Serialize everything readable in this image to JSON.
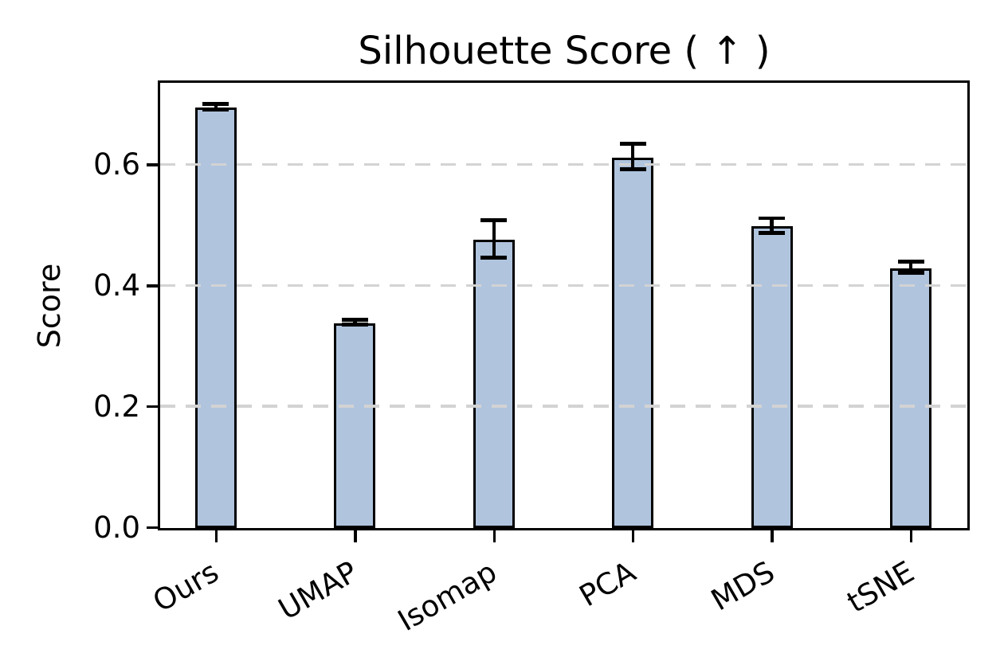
{
  "title": "Silhouette Score ( ↑ )",
  "chart_data": {
    "type": "bar",
    "title": "Silhouette Score ( ↑ )",
    "xlabel": "",
    "ylabel": "Score",
    "categories": [
      "Ours",
      "UMAP",
      "Isomap",
      "PCA",
      "MDS",
      "tSNE"
    ],
    "values": [
      0.695,
      0.339,
      0.477,
      0.613,
      0.499,
      0.43
    ],
    "errors": [
      0.005,
      0.004,
      0.031,
      0.021,
      0.012,
      0.009
    ],
    "series": [
      {
        "name": "Silhouette Score",
        "values": [
          0.695,
          0.339,
          0.477,
          0.613,
          0.499,
          0.43
        ],
        "errors": [
          0.005,
          0.004,
          0.031,
          0.021,
          0.012,
          0.009
        ]
      }
    ],
    "yticks": [
      0.0,
      0.2,
      0.4,
      0.6
    ],
    "ytick_labels": [
      "0.0",
      "0.2",
      "0.4",
      "0.6"
    ],
    "ylim": [
      0,
      0.735
    ],
    "xtick_rotation_deg": 30,
    "grid": {
      "axis": "y",
      "style": "dashed",
      "above_bars": true
    },
    "legend": null,
    "colors": {
      "bar_fill": "#b0c4de",
      "bar_edge": "#000000",
      "grid": "#d3d3d3",
      "text": "#000000",
      "background": "#ffffff"
    }
  }
}
